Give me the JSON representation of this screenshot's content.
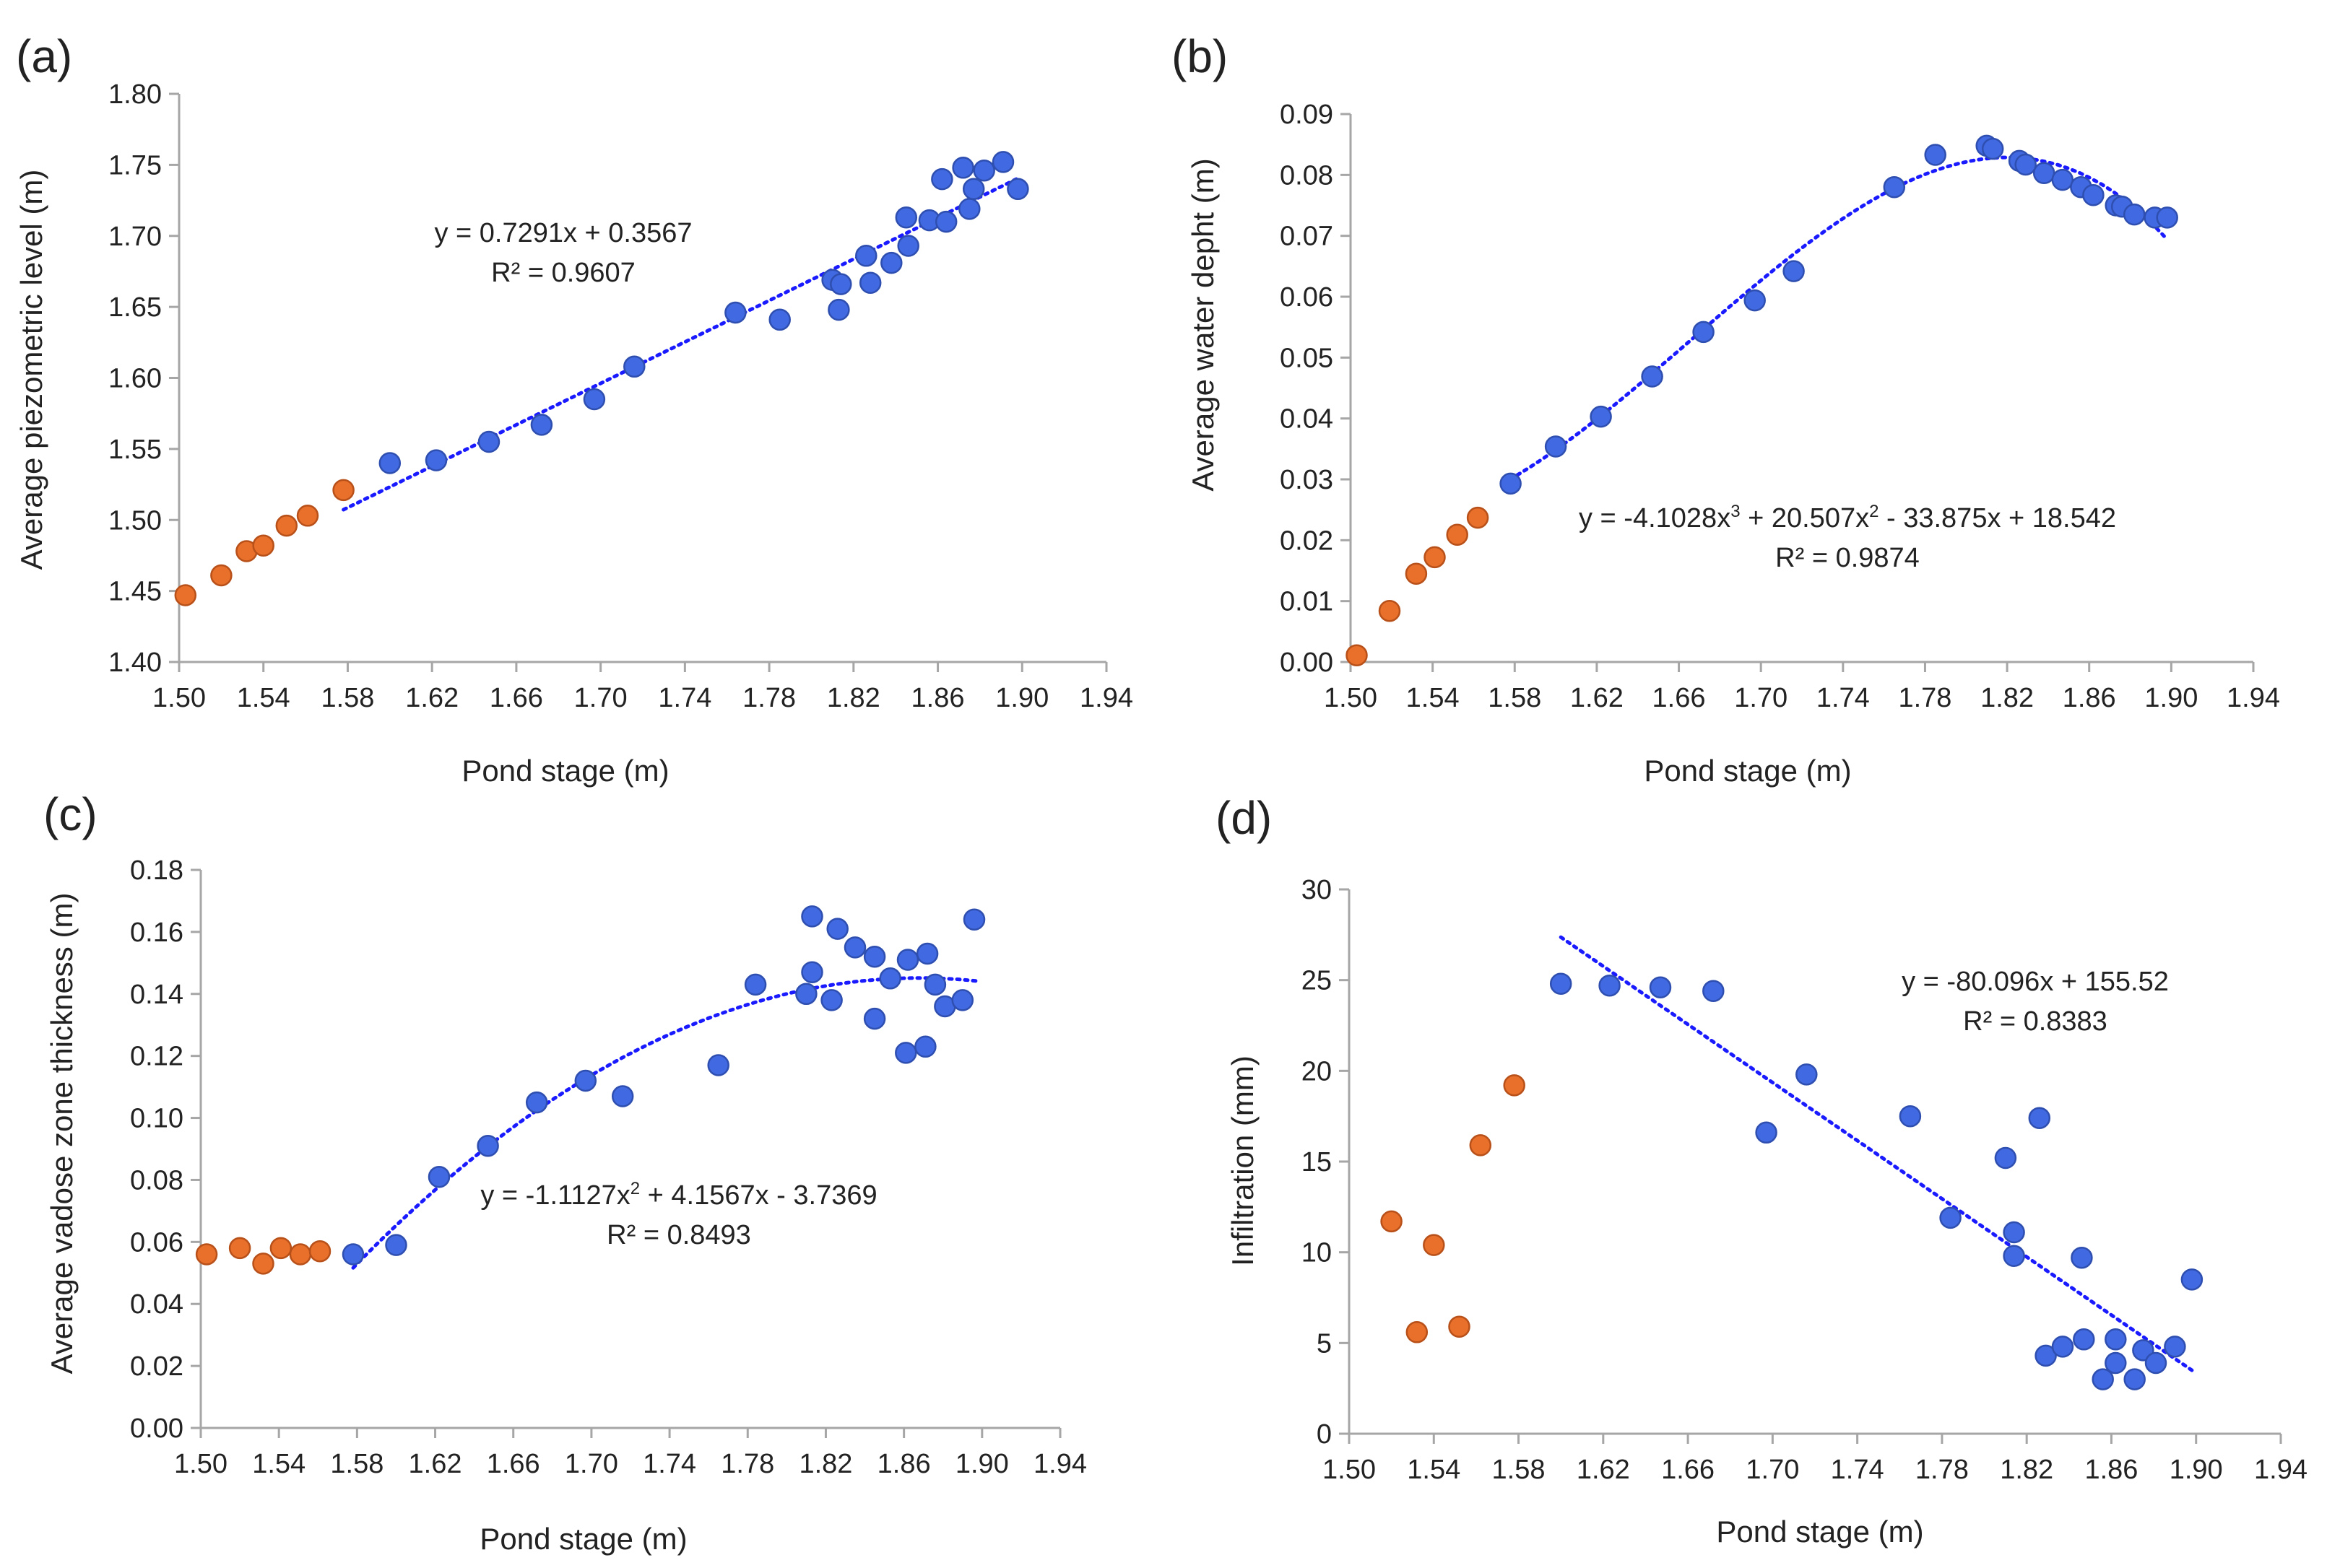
{
  "colors": {
    "pre": "#e8702a",
    "post": "#4169e1",
    "trend": "#1a1aff",
    "axis": "#a6a6a6"
  },
  "chart_data": [
    {
      "panel": "(a)",
      "type": "scatter",
      "xlabel": "Pond stage (m)",
      "ylabel": "Average piezometric level (m)",
      "xlim": [
        1.5,
        1.94
      ],
      "ylim": [
        1.4,
        1.8
      ],
      "xticks": [
        "1.50",
        "1.54",
        "1.58",
        "1.62",
        "1.66",
        "1.70",
        "1.74",
        "1.78",
        "1.82",
        "1.86",
        "1.90",
        "1.94"
      ],
      "yticks": [
        "1.40",
        "1.45",
        "1.50",
        "1.55",
        "1.60",
        "1.65",
        "1.70",
        "1.75",
        "1.80"
      ],
      "equation": "y = 0.7291x + 0.3567",
      "r2": "R² = 0.9607",
      "trend": {
        "kind": "poly",
        "coef": [
          0.3567,
          0.7291
        ],
        "x": [
          1.578,
          1.898
        ]
      },
      "series": [
        {
          "name": "pre",
          "points": [
            [
              1.503,
              1.447
            ],
            [
              1.52,
              1.461
            ],
            [
              1.532,
              1.478
            ],
            [
              1.54,
              1.482
            ],
            [
              1.551,
              1.496
            ],
            [
              1.561,
              1.503
            ],
            [
              1.578,
              1.521
            ]
          ]
        },
        {
          "name": "post",
          "points": [
            [
              1.6,
              1.54
            ],
            [
              1.622,
              1.542
            ],
            [
              1.647,
              1.555
            ],
            [
              1.672,
              1.567
            ],
            [
              1.697,
              1.585
            ],
            [
              1.716,
              1.608
            ],
            [
              1.764,
              1.646
            ],
            [
              1.785,
              1.641
            ],
            [
              1.81,
              1.669
            ],
            [
              1.814,
              1.666
            ],
            [
              1.813,
              1.648
            ],
            [
              1.826,
              1.686
            ],
            [
              1.828,
              1.667
            ],
            [
              1.838,
              1.681
            ],
            [
              1.845,
              1.713
            ],
            [
              1.846,
              1.693
            ],
            [
              1.856,
              1.711
            ],
            [
              1.862,
              1.74
            ],
            [
              1.864,
              1.71
            ],
            [
              1.872,
              1.748
            ],
            [
              1.875,
              1.719
            ],
            [
              1.877,
              1.733
            ],
            [
              1.882,
              1.746
            ],
            [
              1.891,
              1.752
            ],
            [
              1.898,
              1.733
            ]
          ]
        }
      ]
    },
    {
      "panel": "(b)",
      "type": "scatter",
      "xlabel": "Pond stage (m)",
      "ylabel": "Average water depht (m)",
      "xlim": [
        1.5,
        1.94
      ],
      "ylim": [
        0.0,
        0.09
      ],
      "xticks": [
        "1.50",
        "1.54",
        "1.58",
        "1.62",
        "1.66",
        "1.70",
        "1.74",
        "1.78",
        "1.82",
        "1.86",
        "1.90",
        "1.94"
      ],
      "yticks": [
        "0.00",
        "0.01",
        "0.02",
        "0.03",
        "0.04",
        "0.05",
        "0.06",
        "0.07",
        "0.08",
        "0.09"
      ],
      "equation_parts": [
        "y = -4.1028x",
        "3",
        " + 20.507x",
        "2",
        " - 33.875x + 18.542"
      ],
      "r2": "R² = 0.9874",
      "trend": {
        "kind": "poly",
        "coef": [
          18.542,
          -33.875,
          20.507,
          -4.1028
        ],
        "x": [
          1.578,
          1.898
        ]
      },
      "series": [
        {
          "name": "pre",
          "points": [
            [
              1.503,
              0.0011
            ],
            [
              1.519,
              0.0084
            ],
            [
              1.532,
              0.0145
            ],
            [
              1.541,
              0.0172
            ],
            [
              1.552,
              0.0209
            ],
            [
              1.562,
              0.0237
            ]
          ]
        },
        {
          "name": "post",
          "points": [
            [
              1.578,
              0.0293
            ],
            [
              1.6,
              0.0354
            ],
            [
              1.622,
              0.0403
            ],
            [
              1.647,
              0.0469
            ],
            [
              1.672,
              0.0542
            ],
            [
              1.697,
              0.0594
            ],
            [
              1.716,
              0.0642
            ],
            [
              1.765,
              0.078
            ],
            [
              1.785,
              0.0833
            ],
            [
              1.81,
              0.0848
            ],
            [
              1.813,
              0.0843
            ],
            [
              1.826,
              0.0823
            ],
            [
              1.829,
              0.0817
            ],
            [
              1.838,
              0.0803
            ],
            [
              1.847,
              0.0792
            ],
            [
              1.856,
              0.078
            ],
            [
              1.862,
              0.0767
            ],
            [
              1.873,
              0.075
            ],
            [
              1.876,
              0.0748
            ],
            [
              1.882,
              0.0735
            ],
            [
              1.892,
              0.073
            ],
            [
              1.898,
              0.073
            ]
          ]
        }
      ]
    },
    {
      "panel": "(c)",
      "type": "scatter",
      "xlabel": "Pond stage (m)",
      "ylabel": "Average vadose zone  thickness (m)",
      "xlim": [
        1.5,
        1.94
      ],
      "ylim": [
        0.0,
        0.18
      ],
      "xticks": [
        "1.50",
        "1.54",
        "1.58",
        "1.62",
        "1.66",
        "1.70",
        "1.74",
        "1.78",
        "1.82",
        "1.86",
        "1.90",
        "1.94"
      ],
      "yticks": [
        "0.00",
        "0.02",
        "0.04",
        "0.06",
        "0.08",
        "0.10",
        "0.12",
        "0.14",
        "0.16",
        "0.18"
      ],
      "equation_parts": [
        "y = -1.1127x",
        "2",
        " + 4.1567x - 3.7369"
      ],
      "r2": "R² = 0.8493",
      "trend": {
        "kind": "poly",
        "coef": [
          -3.7369,
          4.1567,
          -1.1127
        ],
        "x": [
          1.578,
          1.898
        ]
      },
      "series": [
        {
          "name": "pre",
          "points": [
            [
              1.503,
              0.056
            ],
            [
              1.52,
              0.058
            ],
            [
              1.532,
              0.053
            ],
            [
              1.541,
              0.058
            ],
            [
              1.551,
              0.056
            ],
            [
              1.561,
              0.057
            ]
          ]
        },
        {
          "name": "post",
          "points": [
            [
              1.578,
              0.056
            ],
            [
              1.6,
              0.059
            ],
            [
              1.622,
              0.081
            ],
            [
              1.647,
              0.091
            ],
            [
              1.672,
              0.105
            ],
            [
              1.697,
              0.112
            ],
            [
              1.716,
              0.107
            ],
            [
              1.765,
              0.117
            ],
            [
              1.784,
              0.143
            ],
            [
              1.81,
              0.14
            ],
            [
              1.813,
              0.147
            ],
            [
              1.813,
              0.165
            ],
            [
              1.823,
              0.138
            ],
            [
              1.826,
              0.161
            ],
            [
              1.835,
              0.155
            ],
            [
              1.845,
              0.152
            ],
            [
              1.845,
              0.132
            ],
            [
              1.853,
              0.145
            ],
            [
              1.861,
              0.121
            ],
            [
              1.862,
              0.151
            ],
            [
              1.871,
              0.123
            ],
            [
              1.872,
              0.153
            ],
            [
              1.876,
              0.143
            ],
            [
              1.881,
              0.136
            ],
            [
              1.89,
              0.138
            ],
            [
              1.896,
              0.164
            ]
          ]
        }
      ]
    },
    {
      "panel": "(d)",
      "type": "scatter",
      "xlabel": "Pond stage (m)",
      "ylabel": "Infiltration (mm)",
      "xlim": [
        1.5,
        1.94
      ],
      "ylim": [
        0,
        30
      ],
      "xticks": [
        "1.50",
        "1.54",
        "1.58",
        "1.62",
        "1.66",
        "1.70",
        "1.74",
        "1.78",
        "1.82",
        "1.86",
        "1.90",
        "1.94"
      ],
      "yticks": [
        "0",
        "5",
        "10",
        "15",
        "20",
        "25",
        "30"
      ],
      "equation": "y = -80.096x + 155.52",
      "r2": "R² = 0.8383",
      "trend": {
        "kind": "poly",
        "coef": [
          155.52,
          -80.096
        ],
        "x": [
          1.6,
          1.898
        ]
      },
      "series": [
        {
          "name": "pre",
          "points": [
            [
              1.52,
              11.7
            ],
            [
              1.532,
              5.6
            ],
            [
              1.54,
              10.4
            ],
            [
              1.552,
              5.9
            ],
            [
              1.562,
              15.9
            ],
            [
              1.578,
              19.2
            ]
          ]
        },
        {
          "name": "post",
          "points": [
            [
              1.6,
              24.8
            ],
            [
              1.623,
              24.7
            ],
            [
              1.647,
              24.6
            ],
            [
              1.672,
              24.4
            ],
            [
              1.697,
              16.6
            ],
            [
              1.716,
              19.8
            ],
            [
              1.765,
              17.5
            ],
            [
              1.784,
              11.9
            ],
            [
              1.81,
              15.2
            ],
            [
              1.814,
              11.1
            ],
            [
              1.814,
              9.8
            ],
            [
              1.826,
              17.4
            ],
            [
              1.829,
              4.3
            ],
            [
              1.837,
              4.8
            ],
            [
              1.846,
              9.7
            ],
            [
              1.847,
              5.2
            ],
            [
              1.856,
              3.0
            ],
            [
              1.862,
              5.2
            ],
            [
              1.862,
              3.9
            ],
            [
              1.871,
              3.0
            ],
            [
              1.875,
              4.6
            ],
            [
              1.881,
              3.9
            ],
            [
              1.89,
              4.8
            ],
            [
              1.898,
              8.5
            ]
          ]
        }
      ]
    }
  ]
}
